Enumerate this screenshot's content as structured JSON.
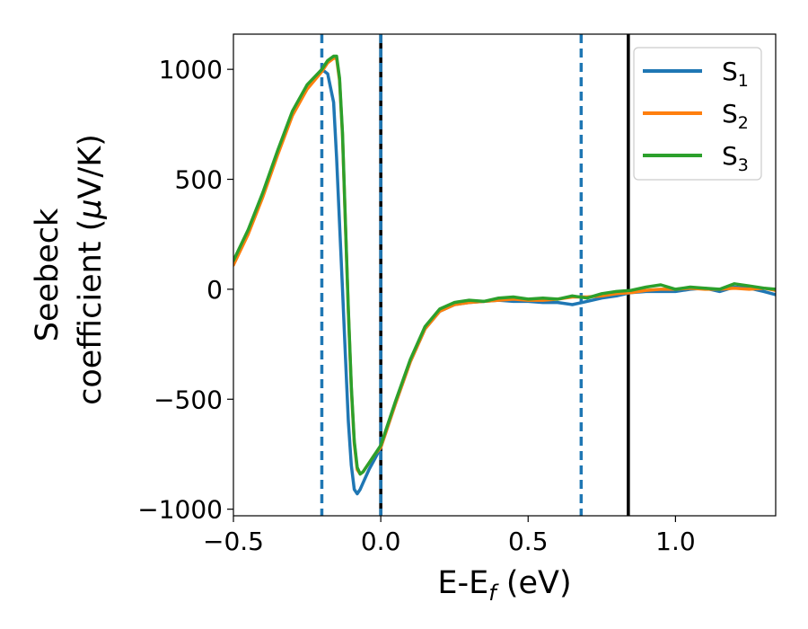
{
  "chart_data": {
    "type": "line",
    "title": "",
    "xlabel": "E-E",
    "xlabel_sub": "f",
    "xlabel_unit": " (eV)",
    "ylabel_line1": "Seebeck",
    "ylabel_line2_pre": "coefficient  (",
    "ylabel_mu": "μ",
    "ylabel_line2_post": "V/K)",
    "xlim": [
      -0.5,
      1.34
    ],
    "ylim": [
      -1030,
      1160
    ],
    "xticks": [
      -0.5,
      0.0,
      0.5,
      1.0
    ],
    "xtick_labels": [
      "−0.5",
      "0.0",
      "0.5",
      "1.0"
    ],
    "yticks": [
      -1000,
      -500,
      0,
      500,
      1000
    ],
    "ytick_labels": [
      "−1000",
      "−500",
      "0",
      "500",
      "1000"
    ],
    "grid": false,
    "legend_position": "top-right",
    "series": [
      {
        "name": "S",
        "sub": "1",
        "color": "#1f77b4",
        "x": [
          -0.5,
          -0.45,
          -0.4,
          -0.35,
          -0.3,
          -0.25,
          -0.2,
          -0.18,
          -0.16,
          -0.15,
          -0.14,
          -0.13,
          -0.12,
          -0.11,
          -0.1,
          -0.09,
          -0.08,
          -0.07,
          -0.06,
          -0.04,
          -0.02,
          0.0,
          0.05,
          0.1,
          0.15,
          0.2,
          0.25,
          0.3,
          0.35,
          0.4,
          0.45,
          0.5,
          0.55,
          0.6,
          0.65,
          0.7,
          0.75,
          0.8,
          0.85,
          0.9,
          0.95,
          1.0,
          1.05,
          1.1,
          1.15,
          1.2,
          1.25,
          1.3,
          1.34
        ],
        "y": [
          120,
          260,
          430,
          620,
          800,
          920,
          1000,
          980,
          850,
          600,
          300,
          0,
          -300,
          -600,
          -800,
          -910,
          -930,
          -910,
          -880,
          -820,
          -770,
          -720,
          -520,
          -330,
          -180,
          -100,
          -70,
          -60,
          -55,
          -50,
          -55,
          -55,
          -60,
          -60,
          -70,
          -55,
          -40,
          -30,
          -15,
          -10,
          -10,
          -10,
          0,
          5,
          -10,
          10,
          5,
          -10,
          -25
        ]
      },
      {
        "name": "S",
        "sub": "2",
        "color": "#ff7f0e",
        "x": [
          -0.5,
          -0.45,
          -0.4,
          -0.35,
          -0.3,
          -0.25,
          -0.2,
          -0.18,
          -0.16,
          -0.15,
          -0.14,
          -0.13,
          -0.12,
          -0.11,
          -0.1,
          -0.09,
          -0.08,
          -0.07,
          -0.06,
          -0.05,
          -0.04,
          -0.02,
          0.0,
          0.05,
          0.1,
          0.15,
          0.2,
          0.25,
          0.3,
          0.35,
          0.4,
          0.45,
          0.5,
          0.55,
          0.6,
          0.65,
          0.7,
          0.75,
          0.8,
          0.85,
          0.9,
          0.95,
          1.0,
          1.05,
          1.1,
          1.15,
          1.2,
          1.25,
          1.3,
          1.34
        ],
        "y": [
          110,
          250,
          420,
          610,
          790,
          910,
          990,
          1030,
          1050,
          1050,
          950,
          700,
          300,
          -100,
          -450,
          -700,
          -820,
          -840,
          -830,
          -810,
          -790,
          -750,
          -720,
          -520,
          -330,
          -180,
          -100,
          -70,
          -60,
          -55,
          -50,
          -45,
          -50,
          -50,
          -45,
          -35,
          -35,
          -30,
          -20,
          -15,
          -5,
          0,
          0,
          5,
          0,
          0,
          5,
          0,
          5,
          -5
        ]
      },
      {
        "name": "S",
        "sub": "3",
        "color": "#2ca02c",
        "x": [
          -0.5,
          -0.45,
          -0.4,
          -0.35,
          -0.3,
          -0.25,
          -0.2,
          -0.18,
          -0.16,
          -0.15,
          -0.14,
          -0.13,
          -0.12,
          -0.11,
          -0.1,
          -0.09,
          -0.08,
          -0.07,
          -0.06,
          -0.05,
          -0.04,
          -0.02,
          0.0,
          0.05,
          0.1,
          0.15,
          0.2,
          0.25,
          0.3,
          0.35,
          0.4,
          0.45,
          0.5,
          0.55,
          0.6,
          0.65,
          0.7,
          0.75,
          0.8,
          0.85,
          0.9,
          0.95,
          1.0,
          1.05,
          1.1,
          1.15,
          1.2,
          1.25,
          1.3,
          1.34
        ],
        "y": [
          130,
          270,
          440,
          630,
          810,
          930,
          1000,
          1040,
          1060,
          1060,
          960,
          710,
          310,
          -90,
          -440,
          -690,
          -810,
          -840,
          -830,
          -810,
          -790,
          -750,
          -710,
          -510,
          -320,
          -170,
          -90,
          -60,
          -50,
          -55,
          -40,
          -35,
          -45,
          -40,
          -45,
          -30,
          -40,
          -20,
          -10,
          -5,
          10,
          20,
          0,
          10,
          5,
          0,
          25,
          15,
          5,
          0
        ]
      }
    ],
    "vlines": [
      {
        "x": -0.2,
        "style": "dashed",
        "color": "#1f77b4"
      },
      {
        "x": 0.0,
        "style": "solid",
        "color": "#000000"
      },
      {
        "x": 0.0,
        "style": "dashed",
        "color": "#1f77b4"
      },
      {
        "x": 0.68,
        "style": "dashed",
        "color": "#1f77b4"
      },
      {
        "x": 0.84,
        "style": "solid",
        "color": "#000000"
      }
    ]
  }
}
